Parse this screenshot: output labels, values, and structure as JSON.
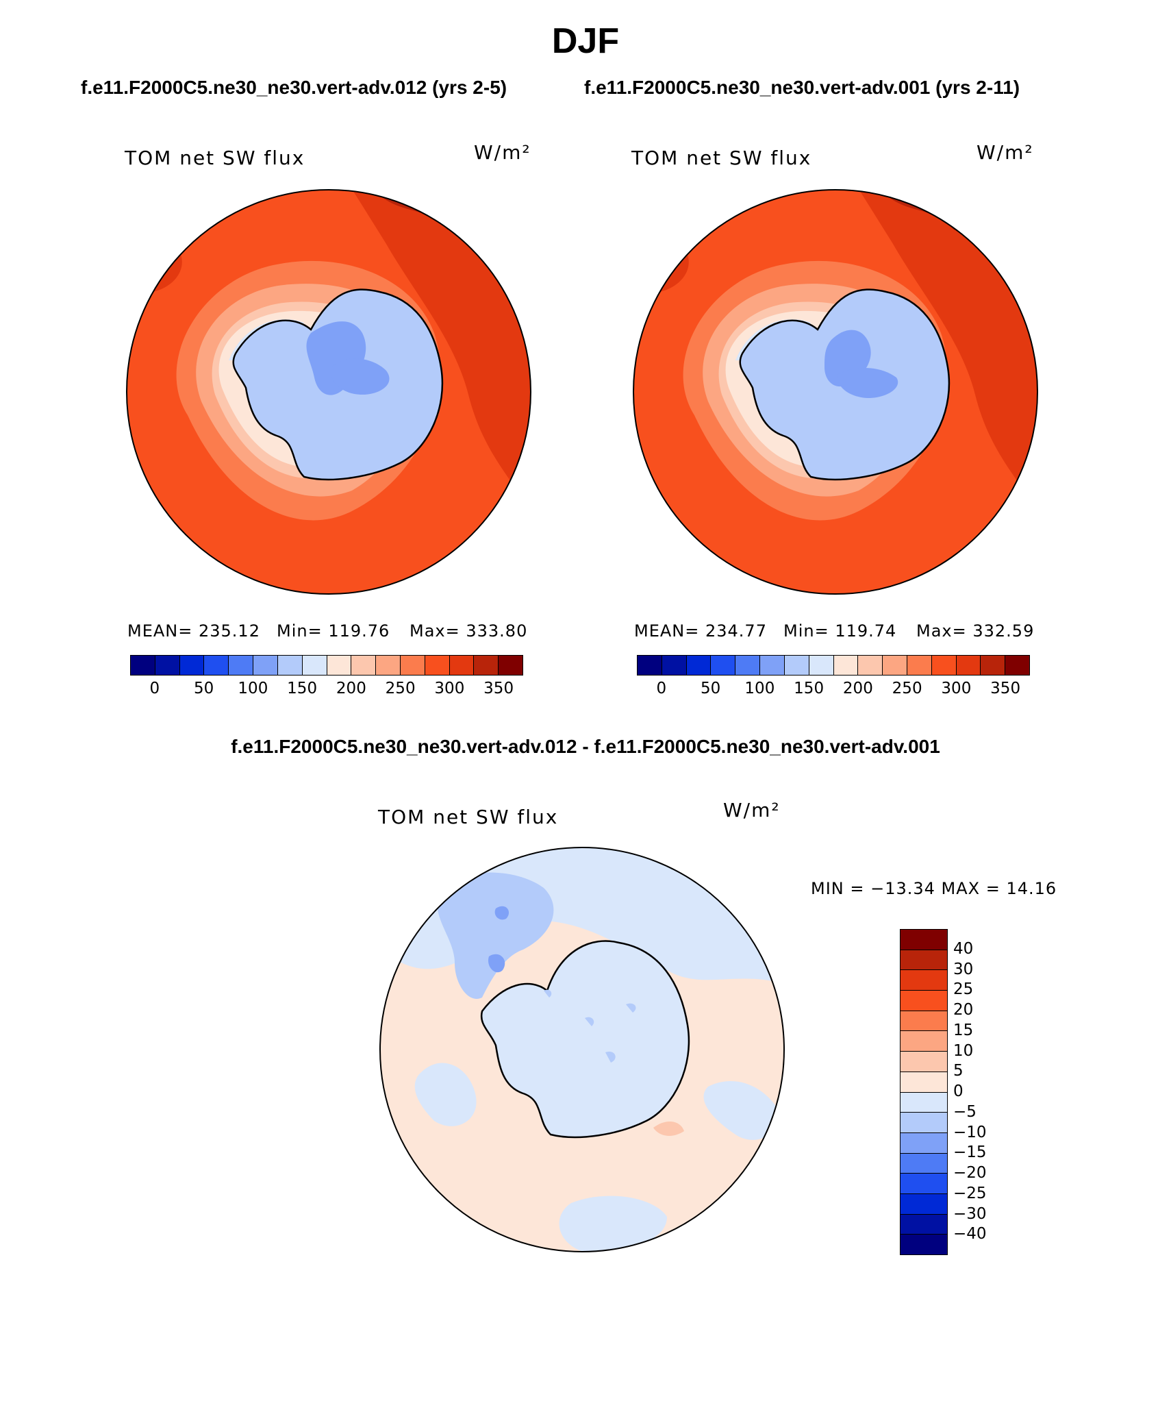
{
  "title": "DJF",
  "panels": [
    {
      "run_title": "f.e11.F2000C5.ne30_ne30.vert-adv.012 (yrs 2-5)",
      "variable": "TOM net SW flux",
      "units": "W/m²",
      "mean": "MEAN= 235.12",
      "min": "Min= 119.76",
      "max": "Max= 333.80"
    },
    {
      "run_title": "f.e11.F2000C5.ne30_ne30.vert-adv.001 (yrs 2-11)",
      "variable": "TOM net SW flux",
      "units": "W/m²",
      "mean": "MEAN= 234.77",
      "min": "Min= 119.74",
      "max": "Max= 332.59"
    }
  ],
  "diff_panel": {
    "title": "f.e11.F2000C5.ne30_ne30.vert-adv.012 - f.e11.F2000C5.ne30_ne30.vert-adv.001",
    "variable": "TOM net SW flux",
    "units": "W/m²",
    "minmax": "MIN = −13.34 MAX =   14.16"
  },
  "field_colorbar": {
    "colors": [
      "#00007f",
      "#0011a3",
      "#0029d6",
      "#1f4ff0",
      "#4e7bf5",
      "#7fa1f7",
      "#b3cbfa",
      "#d9e7fb",
      "#fde6d8",
      "#fcc7ae",
      "#fca682",
      "#fb7c4d",
      "#f8501e",
      "#e33910",
      "#b8240a",
      "#7f0000"
    ],
    "labels": [
      "0",
      "50",
      "100",
      "150",
      "200",
      "250",
      "300",
      "350"
    ]
  },
  "diff_colorbar": {
    "colors": [
      "#7f0000",
      "#b8240a",
      "#e33910",
      "#f8501e",
      "#fb7c4d",
      "#fca682",
      "#fcc7ae",
      "#fde6d8",
      "#d9e7fb",
      "#b3cbfa",
      "#7fa1f7",
      "#4e7bf5",
      "#1f4ff0",
      "#0029d6",
      "#0011a3",
      "#00007f"
    ],
    "labels": [
      "40",
      "30",
      "25",
      "20",
      "15",
      "10",
      "5",
      "0",
      "−5",
      "−10",
      "−15",
      "−20",
      "−25",
      "−30",
      "−40"
    ]
  }
}
